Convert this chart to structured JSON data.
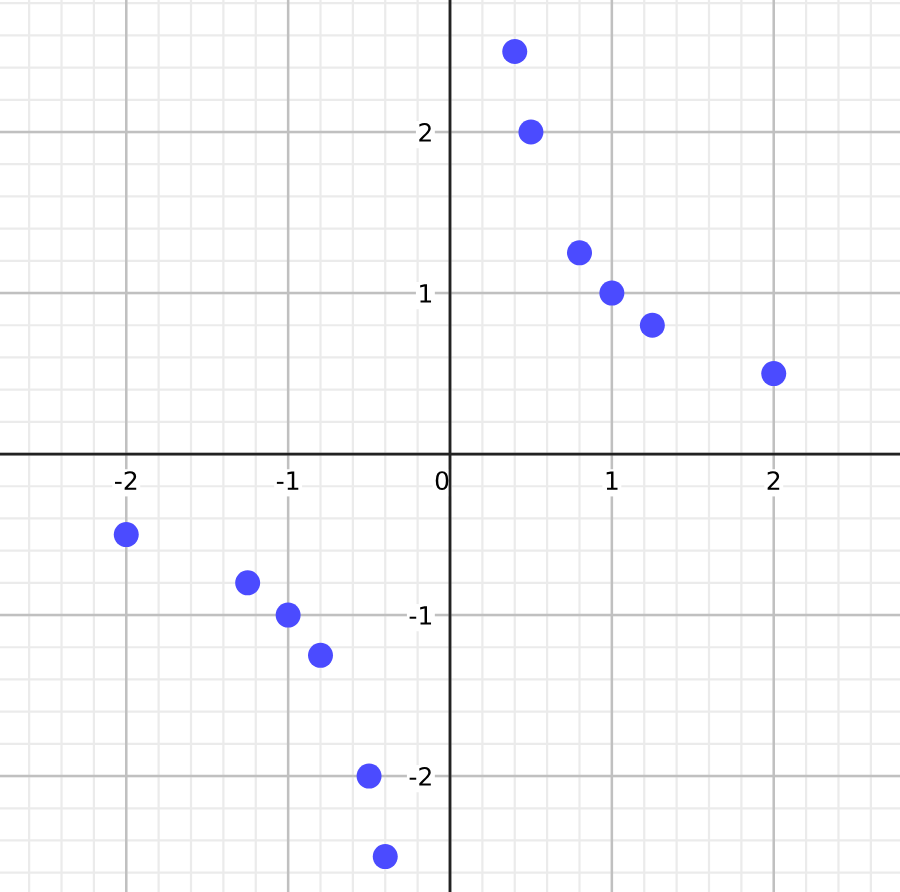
{
  "chart_data": {
    "type": "scatter",
    "x": [
      0.4,
      0.5,
      0.8,
      1,
      1.25,
      2,
      -2,
      -1.25,
      -1,
      -0.8,
      -0.5,
      -0.4
    ],
    "series": [
      {
        "color": "#4b4bff",
        "values": [
          2.5,
          2,
          1.25,
          1,
          0.8,
          0.5,
          -0.5,
          -0.8,
          -1,
          -1.25,
          -2,
          -2.5
        ]
      }
    ],
    "xlim": [
      -2.78,
      2.78
    ],
    "ylim": [
      -2.72,
      2.82
    ],
    "xticks": [
      -2,
      -1,
      0,
      1,
      2
    ],
    "yticks": [
      -2,
      -1,
      1,
      2
    ],
    "grid": true,
    "marker": "circle"
  }
}
